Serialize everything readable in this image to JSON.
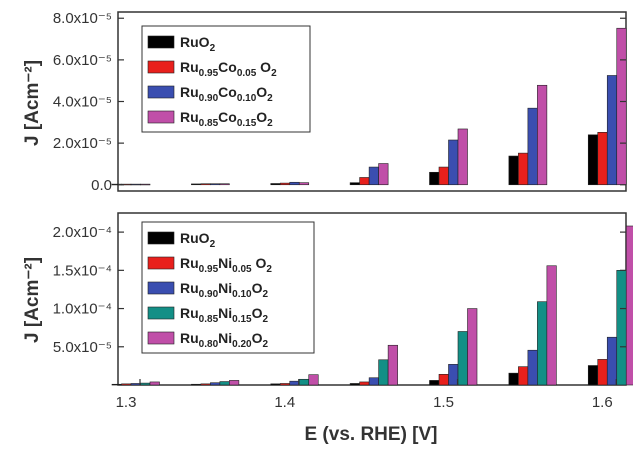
{
  "chart_data": [
    {
      "type": "bar",
      "panel": "top",
      "ylabel": "J [Acm⁻²]",
      "xlabel": "",
      "x": [
        1.3,
        1.35,
        1.4,
        1.45,
        1.5,
        1.55,
        1.6
      ],
      "xlim": [
        1.3,
        1.62
      ],
      "ylim": [
        -3e-06,
        8.3e-05
      ],
      "yticks": [
        0,
        2e-05,
        4e-05,
        6e-05,
        8e-05
      ],
      "ytick_labels": [
        "0.0",
        "2.0x10⁻⁵",
        "4.0x10⁻⁵",
        "6.0x10⁻⁵",
        "8.0x10⁻⁵"
      ],
      "legend_position": "top-left",
      "series": [
        {
          "name": "RuO2",
          "legend": {
            "main": "RuO",
            "sub": "2",
            "tail": ""
          },
          "color": "#000000",
          "values": [
            3e-07,
            4e-07,
            6e-07,
            1e-06,
            6e-06,
            1.38e-05,
            2.4e-05
          ]
        },
        {
          "name": "Ru0.95Co0.05 O2",
          "legend": {
            "main": "Ru",
            "sub": "0.95",
            "mid": "Co",
            "sub2": "0.05",
            "tail": " O",
            "sub3": "2"
          },
          "color": "#e8201c",
          "values": [
            3e-07,
            5e-07,
            8e-07,
            3.5e-06,
            8.5e-06,
            1.52e-05,
            2.52e-05
          ]
        },
        {
          "name": "Ru0.90Co0.10O2",
          "legend": {
            "main": "Ru",
            "sub": "0.90",
            "mid": "Co",
            "sub2": "0.10",
            "tail": "O",
            "sub3": "2"
          },
          "color": "#3a4eb0",
          "values": [
            3e-07,
            5e-07,
            1.2e-06,
            8.5e-06,
            2.15e-05,
            3.68e-05,
            5.25e-05
          ]
        },
        {
          "name": "Ru0.85Co0.15O2",
          "legend": {
            "main": "Ru",
            "sub": "0.85",
            "mid": "Co",
            "sub2": "0.15",
            "tail": "O",
            "sub3": "2"
          },
          "color": "#c04fa8",
          "values": [
            3e-07,
            5e-07,
            1e-06,
            1.02e-05,
            2.68e-05,
            4.78e-05,
            7.52e-05
          ]
        }
      ]
    },
    {
      "type": "bar",
      "panel": "bottom",
      "ylabel": "J [Acm⁻²]",
      "xlabel": "E (vs. RHE) [V]",
      "x": [
        1.3,
        1.35,
        1.4,
        1.45,
        1.5,
        1.55,
        1.6
      ],
      "xlim": [
        1.3,
        1.62
      ],
      "xticks": [
        1.3,
        1.4,
        1.5,
        1.6
      ],
      "xtick_labels": [
        "1.3",
        "1.4",
        "1.5",
        "1.6"
      ],
      "ylim": [
        0,
        0.000225
      ],
      "yticks": [
        5e-05,
        0.0001,
        0.00015,
        0.0002
      ],
      "ytick_labels": [
        "5.0x10⁻⁵",
        "1.0x10⁻⁴",
        "1.5x10⁻⁴",
        "2.0x10⁻⁴"
      ],
      "legend_position": "top-left",
      "series": [
        {
          "name": "RuO2",
          "legend": {
            "main": "RuO",
            "sub": "2",
            "tail": ""
          },
          "color": "#000000",
          "values": [
            1e-06,
            1e-06,
            1.5e-06,
            2e-06,
            6e-06,
            1.55e-05,
            2.55e-05
          ]
        },
        {
          "name": "Ru0.95Ni0.05 O2",
          "legend": {
            "main": "Ru",
            "sub": "0.95",
            "mid": "Ni",
            "sub2": "0.05",
            "tail": " O",
            "sub3": "2"
          },
          "color": "#e8201c",
          "values": [
            1.5e-06,
            1.5e-06,
            2e-06,
            4e-06,
            1.4e-05,
            2.4e-05,
            3.35e-05
          ]
        },
        {
          "name": "Ru0.90Ni0.10O2",
          "legend": {
            "main": "Ru",
            "sub": "0.90",
            "mid": "Ni",
            "sub2": "0.10",
            "tail": "O",
            "sub3": "2"
          },
          "color": "#3a4eb0",
          "values": [
            2e-06,
            3e-06,
            5e-06,
            9.5e-06,
            2.7e-05,
            4.55e-05,
            6.25e-05
          ]
        },
        {
          "name": "Ru0.85Ni0.15O2",
          "legend": {
            "main": "Ru",
            "sub": "0.85",
            "mid": "Ni",
            "sub2": "0.15",
            "tail": "O",
            "sub3": "2"
          },
          "color": "#138f86",
          "values": [
            2.5e-06,
            4.5e-06,
            7.5e-06,
            3.3e-05,
            7e-05,
            0.000109,
            0.00015
          ]
        },
        {
          "name": "Ru0.80Ni0.20O2",
          "legend": {
            "main": "Ru",
            "sub": "0.80",
            "mid": "Ni",
            "sub2": "0.20",
            "tail": "O",
            "sub3": "2"
          },
          "color": "#c04fa8",
          "values": [
            4e-06,
            6e-06,
            1.35e-05,
            5.2e-05,
            0.0001,
            0.000156,
            0.000208
          ]
        }
      ]
    }
  ]
}
